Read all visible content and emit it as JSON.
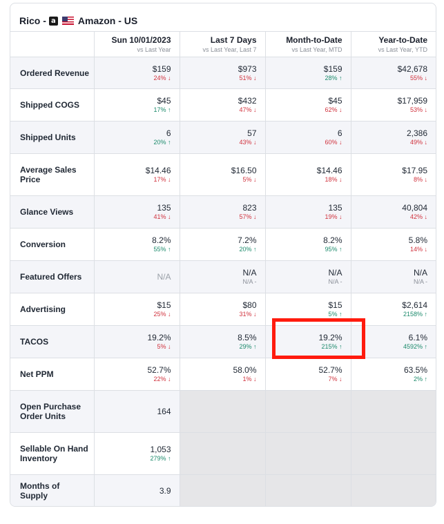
{
  "header": {
    "name": "Rico -",
    "amazon_icon": "amazon-a-icon",
    "flag_icon": "us-flag-icon",
    "marketplace": "Amazon - US"
  },
  "columns": [
    {
      "title": "Sun 10/01/2023",
      "sub": "vs Last Year"
    },
    {
      "title": "Last 7 Days",
      "sub": "vs Last Year, Last 7"
    },
    {
      "title": "Month-to-Date",
      "sub": "vs Last Year, MTD"
    },
    {
      "title": "Year-to-Date",
      "sub": "vs Last Year, YTD"
    }
  ],
  "rows": [
    {
      "metric": "Ordered Revenue",
      "cells": [
        {
          "value": "$159",
          "change": "24% ↓",
          "dir": "red"
        },
        {
          "value": "$973",
          "change": "51% ↓",
          "dir": "red"
        },
        {
          "value": "$159",
          "change": "28% ↑",
          "dir": "green"
        },
        {
          "value": "$42,678",
          "change": "55% ↓",
          "dir": "red"
        }
      ]
    },
    {
      "metric": "Shipped COGS",
      "cells": [
        {
          "value": "$45",
          "change": "17% ↑",
          "dir": "green"
        },
        {
          "value": "$432",
          "change": "47% ↓",
          "dir": "red"
        },
        {
          "value": "$45",
          "change": "62% ↓",
          "dir": "red"
        },
        {
          "value": "$17,959",
          "change": "53% ↓",
          "dir": "red"
        }
      ]
    },
    {
      "metric": "Shipped Units",
      "cells": [
        {
          "value": "6",
          "change": "20% ↑",
          "dir": "green"
        },
        {
          "value": "57",
          "change": "43% ↓",
          "dir": "red"
        },
        {
          "value": "6",
          "change": "60% ↓",
          "dir": "red"
        },
        {
          "value": "2,386",
          "change": "49% ↓",
          "dir": "red"
        }
      ]
    },
    {
      "metric": "Average Sales Price",
      "cells": [
        {
          "value": "$14.46",
          "change": "17% ↓",
          "dir": "red"
        },
        {
          "value": "$16.50",
          "change": "5% ↓",
          "dir": "red"
        },
        {
          "value": "$14.46",
          "change": "18% ↓",
          "dir": "red"
        },
        {
          "value": "$17.95",
          "change": "8% ↓",
          "dir": "red"
        }
      ]
    },
    {
      "metric": "Glance Views",
      "cells": [
        {
          "value": "135",
          "change": "41% ↓",
          "dir": "red"
        },
        {
          "value": "823",
          "change": "57% ↓",
          "dir": "red"
        },
        {
          "value": "135",
          "change": "19% ↓",
          "dir": "red"
        },
        {
          "value": "40,804",
          "change": "42% ↓",
          "dir": "red"
        }
      ]
    },
    {
      "metric": "Conversion",
      "cells": [
        {
          "value": "8.2%",
          "change": "55% ↑",
          "dir": "green"
        },
        {
          "value": "7.2%",
          "change": "20% ↑",
          "dir": "green"
        },
        {
          "value": "8.2%",
          "change": "95% ↑",
          "dir": "green"
        },
        {
          "value": "5.8%",
          "change": "14% ↓",
          "dir": "red"
        }
      ]
    },
    {
      "metric": "Featured Offers",
      "cells": [
        {
          "value": "N/A",
          "change": "",
          "dir": "na"
        },
        {
          "value": "N/A",
          "change": "N/A -",
          "dir": "gray"
        },
        {
          "value": "N/A",
          "change": "N/A -",
          "dir": "gray"
        },
        {
          "value": "N/A",
          "change": "N/A -",
          "dir": "gray"
        }
      ]
    },
    {
      "metric": "Advertising",
      "cells": [
        {
          "value": "$15",
          "change": "25% ↓",
          "dir": "red"
        },
        {
          "value": "$80",
          "change": "31% ↓",
          "dir": "red"
        },
        {
          "value": "$15",
          "change": "5% ↑",
          "dir": "green"
        },
        {
          "value": "$2,614",
          "change": "2158% ↑",
          "dir": "green"
        }
      ]
    },
    {
      "metric": "TACOS",
      "cells": [
        {
          "value": "19.2%",
          "change": "5% ↓",
          "dir": "red"
        },
        {
          "value": "8.5%",
          "change": "29% ↑",
          "dir": "green"
        },
        {
          "value": "19.2%",
          "change": "215% ↑",
          "dir": "green"
        },
        {
          "value": "6.1%",
          "change": "4592% ↑",
          "dir": "green"
        }
      ]
    },
    {
      "metric": "Net PPM",
      "cells": [
        {
          "value": "52.7%",
          "change": "22% ↓",
          "dir": "red"
        },
        {
          "value": "58.0%",
          "change": "1% ↓",
          "dir": "red"
        },
        {
          "value": "52.7%",
          "change": "7% ↓",
          "dir": "red"
        },
        {
          "value": "63.5%",
          "change": "2% ↑",
          "dir": "green"
        }
      ]
    },
    {
      "metric": "Open Purchase Order Units",
      "cells": [
        {
          "value": "164",
          "change": "",
          "dir": "none"
        }
      ]
    },
    {
      "metric": "Sellable On Hand Inventory",
      "cells": [
        {
          "value": "1,053",
          "change": "279% ↑",
          "dir": "green"
        }
      ]
    },
    {
      "metric": "Months of Supply",
      "cells": [
        {
          "value": "3.9",
          "change": "",
          "dir": "none"
        }
      ]
    }
  ],
  "colors": {
    "negative": "#d0313c",
    "positive": "#1b8a6b",
    "highlight": "#ff1b0e"
  }
}
